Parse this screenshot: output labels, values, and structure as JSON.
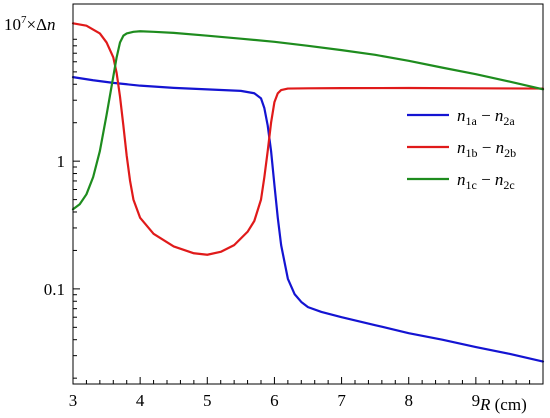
{
  "chart_data": {
    "type": "line",
    "ylabel": {
      "prefix": "10",
      "exp": "7",
      "mid": "×Δ",
      "var": "n"
    },
    "xlabel": {
      "var": "R",
      "unit": " (cm)"
    },
    "xlim": [
      3,
      10
    ],
    "ylim": [
      0.018,
      17
    ],
    "yscale": "log",
    "grid": false,
    "legend_position": "right",
    "xticks": [
      {
        "value": 3,
        "label": "3"
      },
      {
        "value": 4,
        "label": "4"
      },
      {
        "value": 5,
        "label": "5"
      },
      {
        "value": 6,
        "label": "6"
      },
      {
        "value": 7,
        "label": "7"
      },
      {
        "value": 8,
        "label": "8"
      },
      {
        "value": 9,
        "label": "9"
      }
    ],
    "yticks": [
      {
        "value": 1,
        "label": "1"
      },
      {
        "value": 0.1,
        "label": "0.1"
      }
    ],
    "series": [
      {
        "key": "a",
        "label": {
          "n1": "n",
          "s1": "1a",
          "n2": "n",
          "s2": "2a"
        },
        "color": "#1414d2",
        "x": [
          3.0,
          3.3,
          3.6,
          4.0,
          4.5,
          5.0,
          5.5,
          5.7,
          5.8,
          5.85,
          5.9,
          5.95,
          6.0,
          6.05,
          6.1,
          6.2,
          6.3,
          6.4,
          6.5,
          6.7,
          7.0,
          7.5,
          8.0,
          8.5,
          9.0,
          9.5,
          10.0
        ],
        "y": [
          4.55,
          4.3,
          4.1,
          3.9,
          3.75,
          3.65,
          3.55,
          3.4,
          3.1,
          2.6,
          1.9,
          1.2,
          0.65,
          0.36,
          0.22,
          0.12,
          0.091,
          0.079,
          0.072,
          0.066,
          0.06,
          0.052,
          0.045,
          0.04,
          0.035,
          0.031,
          0.027
        ]
      },
      {
        "key": "b",
        "label": {
          "n1": "n",
          "s1": "1b",
          "n2": "n",
          "s2": "2b"
        },
        "color": "#e01a1a",
        "x": [
          3.0,
          3.2,
          3.4,
          3.5,
          3.6,
          3.65,
          3.7,
          3.75,
          3.8,
          3.85,
          3.9,
          4.0,
          4.2,
          4.5,
          4.8,
          5.0,
          5.2,
          5.4,
          5.6,
          5.7,
          5.8,
          5.85,
          5.9,
          5.95,
          6.0,
          6.05,
          6.1,
          6.2,
          6.5,
          7.0,
          8.0,
          9.0,
          10.0
        ],
        "y": [
          12.0,
          11.5,
          10.0,
          8.5,
          6.5,
          4.9,
          3.2,
          1.9,
          1.1,
          0.7,
          0.5,
          0.36,
          0.27,
          0.215,
          0.19,
          0.185,
          0.195,
          0.22,
          0.28,
          0.34,
          0.5,
          0.75,
          1.2,
          2.0,
          2.9,
          3.4,
          3.6,
          3.7,
          3.72,
          3.73,
          3.74,
          3.72,
          3.7
        ]
      },
      {
        "key": "c",
        "label": {
          "n1": "n",
          "s1": "1c",
          "n2": "n",
          "s2": "2c"
        },
        "color": "#1e8c1e",
        "x": [
          3.0,
          3.1,
          3.2,
          3.3,
          3.4,
          3.5,
          3.6,
          3.65,
          3.7,
          3.75,
          3.8,
          3.9,
          4.0,
          4.2,
          4.5,
          5.0,
          5.5,
          6.0,
          6.5,
          7.0,
          7.5,
          8.0,
          8.5,
          9.0,
          9.5,
          10.0
        ],
        "y": [
          0.42,
          0.46,
          0.55,
          0.75,
          1.2,
          2.3,
          4.6,
          6.5,
          8.5,
          9.6,
          10.0,
          10.3,
          10.4,
          10.3,
          10.1,
          9.6,
          9.1,
          8.6,
          8.0,
          7.4,
          6.8,
          6.1,
          5.4,
          4.8,
          4.2,
          3.65
        ]
      }
    ]
  }
}
